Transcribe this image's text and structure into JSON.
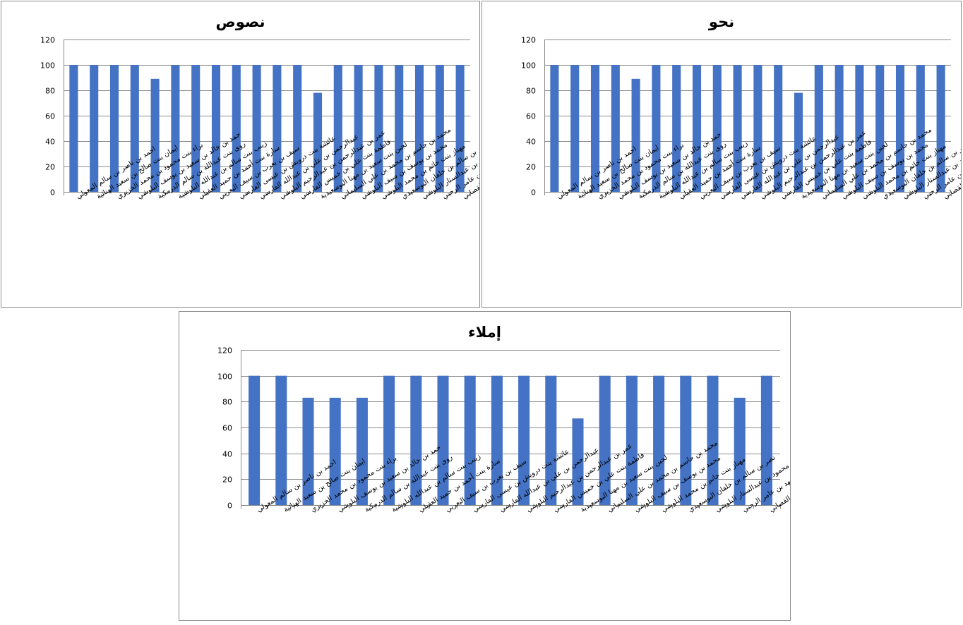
{
  "chart_data": [
    {
      "type": "bar",
      "title": "نصوص",
      "xlabel": "",
      "ylabel": "",
      "ylim": [
        0,
        120
      ],
      "yticks": [
        0,
        20,
        40,
        60,
        80,
        100,
        120
      ],
      "grid": true,
      "legend": "none",
      "bar_color": "#4472C4",
      "categories": [
        "احمد بن ناصر بن سالم المعولي",
        "ايمان بنت صالح بن سعيد الهنائية",
        "براء بنت محمود بن محمد الخزيري",
        "حمد بن خالد بن سعيد بن يوسف البلوشي",
        "روى بنت عبدالله بن سالم الدرمكية",
        "زينب بنت سالم بن عبدالله البلوشية",
        "سارة بنت أحمد بن حميد العقيلي",
        "سيف بن يعرب بن سيف اليعربي",
        "عائشة بنت درويش بن عيسى الفارسي",
        "عبدالرحمن بن علي بن عبدالله الفارسي",
        "عمر بن عبدالرحمن بن عبدالرحيم البلوشي",
        "فاطمة بنت علي بن خميس الفارسي",
        "لجين بنت سعيد بن مهنا البوسعيدية",
        "محمد بن جاسم بن محمد بن علي السليماني",
        "محمد بن يوسف بن سيف البلوشي",
        "مهناز بنت حاتم بن محمد البلوشي",
        "نصر بن سالم بن خلفان البوسعيدي",
        "نور بنت محمود بن عبدالستار البلوشي",
        "نويلة بنت فهد بن عامر الرحبي",
        "يوسف بن يعقوب بن يوسف القصابي"
      ],
      "values": [
        100,
        100,
        100,
        100,
        89,
        100,
        100,
        100,
        100,
        100,
        100,
        100,
        78,
        100,
        100,
        100,
        100,
        100,
        100,
        100
      ]
    },
    {
      "type": "bar",
      "title": "نحو",
      "xlabel": "",
      "ylabel": "",
      "ylim": [
        0,
        120
      ],
      "yticks": [
        0,
        20,
        40,
        60,
        80,
        100,
        120
      ],
      "grid": true,
      "legend": "none",
      "bar_color": "#4472C4",
      "categories": [
        "احمد بن ناصر بن سالم المعولي",
        "ايمان بنت صالح بن سعيد الهنائية",
        "براء بنت محمود بن محمد الخزيري",
        "حمد بن خالد بن سعيد بن يوسف البلوشي",
        "روى بنت عبدالله بن سالم الدرمكية",
        "زينب بنت سالم بن عبدالله البلوشية",
        "سارة بنت أحمد بن حميد العقيلي",
        "سيف بن يعرب بن سيف اليعربي",
        "عائشة بنت درويش بن عيسى الفارسي",
        "عبدالرحمن بن علي بن عبدالله الفارسي",
        "عمر بن عبدالرحمن بن عبدالرحيم البلوشي",
        "فاطمة بنت علي بن خميس الفارسي",
        "لجين بنت سعيد بن مهنا البوسعيدية",
        "محمد بن جاسم بن محمد بن علي السليماني",
        "محمد بن يوسف بن سيف البلوشي",
        "مهناز بنت حاتم بن محمد البلوشي",
        "نصر بن سالم بن خلفان البوسعيدي",
        "نور بنت محمود بن عبدالستار البلوشي",
        "نويلة بنت فهد بن عامر الرحبي",
        "يوسف بن يعقوب بن يوسف القصابي"
      ],
      "values": [
        100,
        100,
        100,
        100,
        89,
        100,
        100,
        100,
        100,
        100,
        100,
        100,
        78,
        100,
        100,
        100,
        100,
        100,
        100,
        100
      ]
    },
    {
      "type": "bar",
      "title": "إملاء",
      "xlabel": "",
      "ylabel": "",
      "ylim": [
        0,
        120
      ],
      "yticks": [
        0,
        20,
        40,
        60,
        80,
        100,
        120
      ],
      "grid": true,
      "legend": "none",
      "bar_color": "#4472C4",
      "categories": [
        "احمد بن ناصر بن سالم المعولي",
        "ايمان بنت صالح بن سعيد الهنائية",
        "براء بنت محمود بن محمد الخزيري",
        "حمد بن خالد بن سعيد بن يوسف البلوشي",
        "روى بنت عبدالله بن سالم الدرمكية",
        "زينب بنت سالم بن عبدالله البلوشية",
        "سارة بنت أحمد بن حميد العقيلي",
        "سيف بن يعرب بن سيف اليعربي",
        "عائشة بنت درويش بن عيسى الفارسي",
        "عبدالرحمن بن علي بن عبدالله الفارسي",
        "عمر بن عبدالرحمن بن عبدالرحيم البلوشي",
        "فاطمة بنت علي بن خميس الفارسي",
        "لجين بنت سعيد بن مهنا البوسعيدية",
        "محمد بن جاسم بن محمد بن علي السليماني",
        "محمد بن يوسف بن سيف البلوشي",
        "مهناز بنت حاتم بن محمد البلوشي",
        "نصر بن سالم بن خلفان البوسعيدي",
        "نور بنت محمود بن عبدالستار البلوشي",
        "نويلة بنت فهد بن عامر الرحبي",
        "يوسف بن يعقوب بن يوسف القصابي"
      ],
      "values": [
        100,
        100,
        83,
        83,
        83,
        100,
        100,
        100,
        100,
        100,
        100,
        100,
        67,
        100,
        100,
        100,
        100,
        100,
        83,
        100
      ]
    }
  ]
}
